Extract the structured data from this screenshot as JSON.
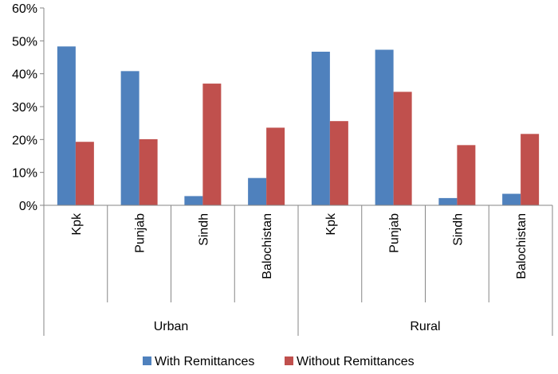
{
  "chart_data": {
    "type": "bar",
    "groups": [
      "Urban",
      "Rural"
    ],
    "categories": [
      "Kpk",
      "Punjab",
      "Sindh",
      "Balochistan",
      "Kpk",
      "Punjab",
      "Sindh",
      "Balochistan"
    ],
    "series": [
      {
        "name": "With Remittances",
        "color": "#4F81BD",
        "values": [
          48.3,
          40.8,
          2.8,
          8.3,
          46.7,
          47.3,
          2.2,
          3.5
        ]
      },
      {
        "name": "Without Remittances",
        "color": "#C0504D",
        "values": [
          19.3,
          20.1,
          37.0,
          23.6,
          25.6,
          34.5,
          18.3,
          21.7
        ]
      }
    ],
    "y_ticks": [
      "0%",
      "10%",
      "20%",
      "30%",
      "40%",
      "50%",
      "60%"
    ],
    "ylim": [
      0,
      60
    ],
    "grid": false,
    "legend_position": "bottom"
  }
}
